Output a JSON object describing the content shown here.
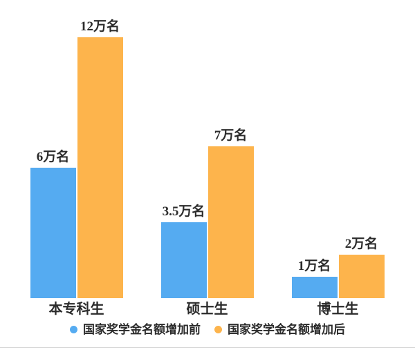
{
  "chart_data": {
    "type": "bar",
    "title": "",
    "xlabel": "",
    "ylabel": "",
    "unit": "万名",
    "categories": [
      "本专科生",
      "硕士生",
      "博士生"
    ],
    "series": [
      {
        "name": "国家奖学金名额增加前",
        "color": "#55ABF1",
        "values": [
          6,
          3.5,
          1
        ],
        "value_labels": [
          "6万名",
          "3.5万名",
          "1万名"
        ]
      },
      {
        "name": "国家奖学金名额增加后",
        "color": "#FDB44C",
        "values": [
          12,
          7,
          2
        ],
        "value_labels": [
          "12万名",
          "7万名",
          "2万名"
        ]
      }
    ],
    "ylim": [
      0,
      12.6
    ],
    "grid": false,
    "axes_shown": false,
    "legend_position": "bottom",
    "value_label_color": "#2b2b2b",
    "category_label_color": "#2b2b2b"
  }
}
